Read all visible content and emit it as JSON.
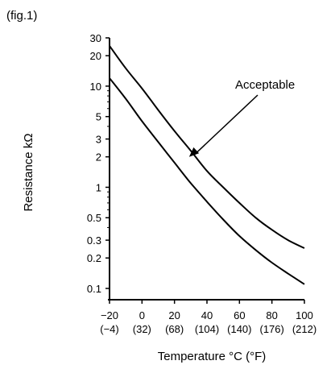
{
  "figure_label": "(fig.1)",
  "chart_data": {
    "type": "line",
    "title": "",
    "xlabel": "Temperature °C (°F)",
    "ylabel": "Resistance kΩ",
    "y_scale": "log",
    "xlim": [
      -20,
      100
    ],
    "ylim": [
      0.1,
      30
    ],
    "grid": false,
    "x_ticks": [
      {
        "c": -20,
        "label": "−20",
        "f_label": "(−4)"
      },
      {
        "c": 0,
        "label": "0",
        "f_label": "(32)"
      },
      {
        "c": 20,
        "label": "20",
        "f_label": "(68)"
      },
      {
        "c": 40,
        "label": "40",
        "f_label": "(104)"
      },
      {
        "c": 60,
        "label": "60",
        "f_label": "(140)"
      },
      {
        "c": 80,
        "label": "80",
        "f_label": "(176)"
      },
      {
        "c": 100,
        "label": "100",
        "f_label": "(212)"
      }
    ],
    "y_ticks": [
      {
        "v": 30,
        "label": "30"
      },
      {
        "v": 20,
        "label": "20"
      },
      {
        "v": 10,
        "label": "10"
      },
      {
        "v": 5,
        "label": "5"
      },
      {
        "v": 3,
        "label": "3"
      },
      {
        "v": 2,
        "label": "2"
      },
      {
        "v": 1,
        "label": "1"
      },
      {
        "v": 0.5,
        "label": "0.5"
      },
      {
        "v": 0.3,
        "label": "0.3"
      },
      {
        "v": 0.2,
        "label": "0.2"
      },
      {
        "v": 0.1,
        "label": "0.1"
      }
    ],
    "series": [
      {
        "role": "upper",
        "x": [
          -20,
          -10,
          0,
          10,
          20,
          30,
          40,
          50,
          60,
          70,
          80,
          90,
          100
        ],
        "y": [
          25,
          15,
          9.5,
          5.8,
          3.6,
          2.3,
          1.45,
          1.0,
          0.7,
          0.5,
          0.38,
          0.3,
          0.25
        ]
      },
      {
        "role": "lower",
        "x": [
          -20,
          -10,
          0,
          10,
          20,
          30,
          40,
          50,
          60,
          70,
          80,
          90,
          100
        ],
        "y": [
          12,
          7.5,
          4.5,
          2.8,
          1.75,
          1.1,
          0.72,
          0.48,
          0.33,
          0.24,
          0.18,
          0.14,
          0.11
        ]
      }
    ],
    "annotations": [
      {
        "text": "Acceptable",
        "points_to": {
          "x": 29,
          "y": 2
        }
      }
    ]
  }
}
